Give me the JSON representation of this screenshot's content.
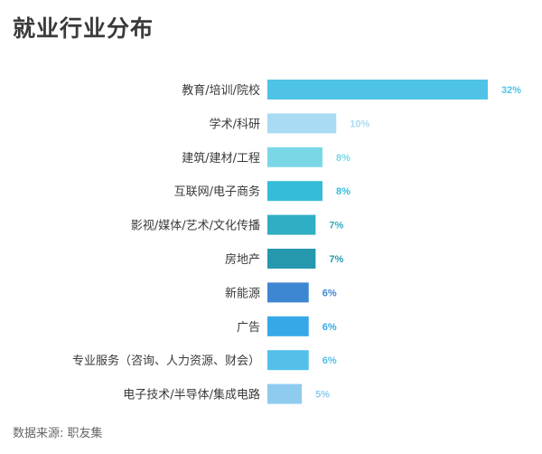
{
  "title": "就业行业分布",
  "source": "数据来源: 职友集",
  "chart_data": {
    "type": "bar",
    "orientation": "horizontal",
    "title": "就业行业分布",
    "xlabel": "",
    "ylabel": "",
    "unit": "%",
    "categories": [
      "教育/培训/院校",
      "学术/科研",
      "建筑/建材/工程",
      "互联网/电子商务",
      "影视/媒体/艺术/文化传播",
      "房地产",
      "新能源",
      "广告",
      "专业服务（咨询、人力资源、财会）",
      "电子技术/半导体/集成电路"
    ],
    "values": [
      32,
      10,
      8,
      8,
      7,
      7,
      6,
      6,
      6,
      5
    ],
    "value_labels": [
      "32%",
      "10%",
      "8%",
      "8%",
      "7%",
      "7%",
      "6%",
      "6%",
      "6%",
      "5%"
    ],
    "colors": [
      "#4fc3e6",
      "#a9dbf2",
      "#7ad8e6",
      "#35bcd8",
      "#30aec4",
      "#2598ae",
      "#3d86d2",
      "#36a8e8",
      "#54c0ea",
      "#8fcbef"
    ],
    "label_colors": [
      "#4fc3e6",
      "#a9dbf2",
      "#7ad8e6",
      "#35bcd8",
      "#30aec4",
      "#2598ae",
      "#3d86d2",
      "#36a8e8",
      "#54c0ea",
      "#8fcbef"
    ],
    "xlim": [
      0,
      32
    ],
    "grid": false,
    "legend": "none"
  }
}
